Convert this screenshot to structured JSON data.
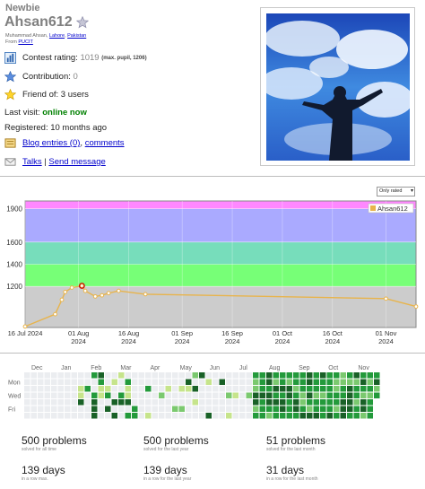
{
  "profile": {
    "rank": "Newbie",
    "handle": "Ahsan612",
    "name_line": {
      "name": "Muhammad Ahsan,",
      "city": "Lahore",
      "country": "Pakistan"
    },
    "from_line": {
      "label": "From",
      "org": "PUCIT"
    },
    "contest_rating": {
      "label": "Contest rating:",
      "value": "1019",
      "max": "(max. pupil, 1206)"
    },
    "contribution": {
      "label": "Contribution:",
      "value": "0"
    },
    "friend_of": "Friend of: 3 users",
    "last_visit": {
      "label": "Last visit:",
      "value": "online now"
    },
    "registered": "Registered: 10 months ago",
    "blog": {
      "entries": "Blog entries (0)",
      "sep": ",",
      "comments": "comments"
    },
    "talks": {
      "talks": "Talks",
      "sep": "|",
      "send": "Send message"
    }
  },
  "rating_graph": {
    "select_value": "Only rated",
    "legend_label": "Ahsan612",
    "colors": {
      "line": "#e8b44c",
      "grey": "#cccccc",
      "green": "#77ff77",
      "teal": "#77ddbb",
      "blue": "#aaaaff",
      "violet": "#ff88ff",
      "highlight": "#cc0000"
    },
    "y_ticks": [
      "1200",
      "1400",
      "1600",
      "1900"
    ],
    "x_ticks": [
      {
        "line1": "16 Jul 2024",
        "line2": ""
      },
      {
        "line1": "01 Aug",
        "line2": "2024"
      },
      {
        "line1": "16 Aug",
        "line2": "2024"
      },
      {
        "line1": "01 Sep",
        "line2": "2024"
      },
      {
        "line1": "16 Sep",
        "line2": "2024"
      },
      {
        "line1": "01 Oct",
        "line2": "2024"
      },
      {
        "line1": "16 Oct",
        "line2": "2024"
      },
      {
        "line1": "01 Nov",
        "line2": "2024"
      }
    ]
  },
  "chart_data": {
    "type": "line",
    "title": "",
    "xlabel": "",
    "ylabel": "",
    "ylim": [
      830,
      1970
    ],
    "series": [
      {
        "name": "Ahsan612",
        "points": [
          {
            "x": "2024-07-16",
            "y": 839
          },
          {
            "x": "2024-07-25",
            "y": 950
          },
          {
            "x": "2024-07-27",
            "y": 1080
          },
          {
            "x": "2024-07-28",
            "y": 1150
          },
          {
            "x": "2024-07-30",
            "y": 1190
          },
          {
            "x": "2024-08-02",
            "y": 1206
          },
          {
            "x": "2024-08-03",
            "y": 1160
          },
          {
            "x": "2024-08-06",
            "y": 1110
          },
          {
            "x": "2024-08-08",
            "y": 1120
          },
          {
            "x": "2024-08-10",
            "y": 1140
          },
          {
            "x": "2024-08-13",
            "y": 1160
          },
          {
            "x": "2024-08-21",
            "y": 1130
          },
          {
            "x": "2024-11-01",
            "y": 1090
          },
          {
            "x": "2024-11-10",
            "y": 1019
          }
        ]
      }
    ]
  },
  "heatmap": {
    "months": [
      "Dec",
      "Jan",
      "Feb",
      "Mar",
      "Apr",
      "May",
      "Jun",
      "Jul",
      "Aug",
      "Sep",
      "Oct",
      "Nov"
    ],
    "days": [
      "Mon",
      "Wed",
      "Fri"
    ],
    "colors": [
      "#ebedf0",
      "#c6e48b",
      "#7bc96f",
      "#239a3b",
      "#196127"
    ],
    "stats": [
      {
        "big": "500 problems",
        "small": "solved for all time"
      },
      {
        "big": "500 problems",
        "small": "solved for the last year"
      },
      {
        "big": "51 problems",
        "small": "solved for the last month"
      },
      {
        "big": "139 days",
        "small": "in a row max."
      },
      {
        "big": "139 days",
        "small": "in a row for the last year"
      },
      {
        "big": "31 days",
        "small": "in a row for the last month"
      }
    ]
  }
}
